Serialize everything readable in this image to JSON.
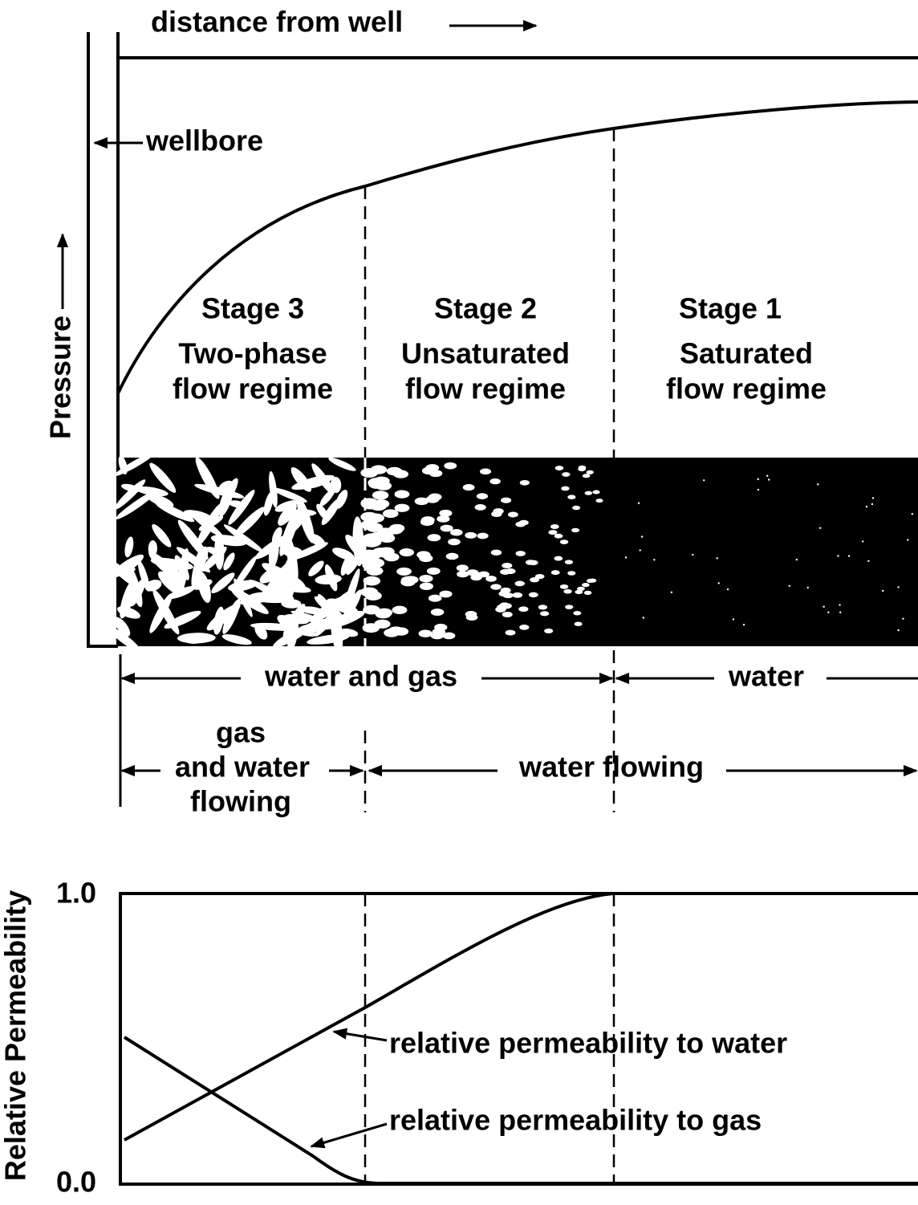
{
  "top_axis": {
    "label": "distance from well"
  },
  "wellbore_label": "wellbore",
  "y_axis_label": "Pressure",
  "stages": [
    {
      "name": "Stage 3",
      "description": [
        "Two-phase",
        "flow regime"
      ]
    },
    {
      "name": "Stage 2",
      "description": [
        "Unsaturated",
        "flow regime"
      ]
    },
    {
      "name": "Stage 1",
      "description": [
        "Saturated",
        "flow regime"
      ]
    }
  ],
  "fluid_present": [
    "water and gas",
    "water"
  ],
  "fluid_flowing": [
    [
      "gas",
      "and water",
      "flowing"
    ],
    "water flowing"
  ],
  "permeability_chart": {
    "y_axis_label": "Relative Permeability",
    "ticks": [
      "1.0",
      "0.0"
    ],
    "curves": [
      {
        "label": "relative permeability to water"
      },
      {
        "label": "relative permeability to gas"
      }
    ]
  }
}
